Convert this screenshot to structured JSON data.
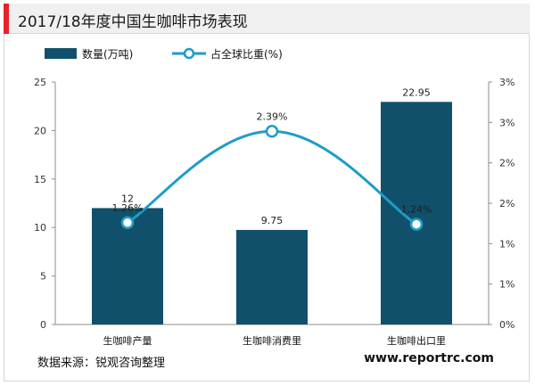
{
  "title": "2017/18年度中国生咖啡市场表现",
  "accent_color": "#e8212b",
  "bar_color": "#10506a",
  "line_color": "#1f9cc8",
  "source": "数据来源：锐观咨询整理",
  "watermark": "www.reportrc.com",
  "chart_data": {
    "type": "bar",
    "title": "2017/18年度中国生咖啡市场表现",
    "categories": [
      "生咖啡产量",
      "生咖啡消费里",
      "生咖啡出口里"
    ],
    "series": [
      {
        "name": "数量(万吨)",
        "type": "bar",
        "axis": "left",
        "values": [
          12,
          9.75,
          22.95
        ],
        "labels": [
          "12",
          "9.75",
          "22.95"
        ]
      },
      {
        "name": "占全球比重(%)",
        "type": "line",
        "axis": "right",
        "values": [
          1.26,
          2.39,
          1.24
        ],
        "labels": [
          "1.26%",
          "2.39%",
          "1.24%"
        ]
      }
    ],
    "left_axis": {
      "min": 0,
      "max": 25,
      "ticks": [
        "0",
        "5",
        "10",
        "15",
        "20",
        "25"
      ]
    },
    "right_axis": {
      "min": 0,
      "max": 3.0,
      "ticks": [
        "0%",
        "1%",
        "1%",
        "2%",
        "2%",
        "3%",
        "3%"
      ]
    },
    "legend": {
      "position": "top-left"
    },
    "grid": false
  }
}
